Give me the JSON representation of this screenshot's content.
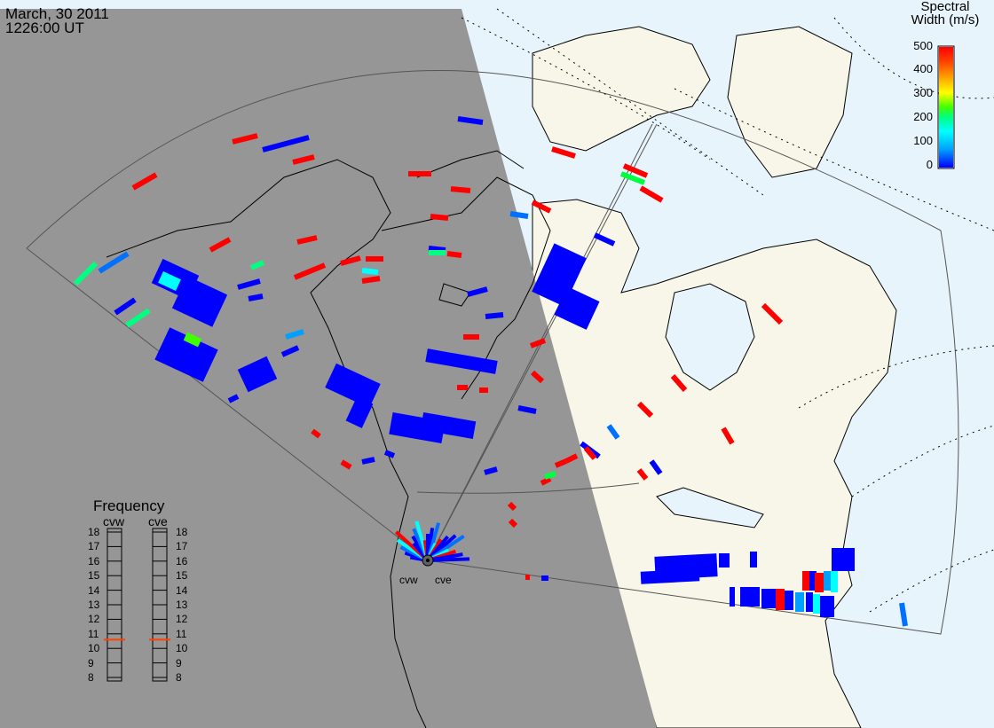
{
  "header": {
    "date": "March, 30 2011",
    "time": "1226:00 UT"
  },
  "colorbar": {
    "title_line1": "Spectral",
    "title_line2": "Width (m/s)",
    "ticks": [
      "500",
      "400",
      "300",
      "200",
      "100",
      "0"
    ],
    "range": [
      0,
      500
    ],
    "colors": [
      "#0000ff",
      "#00a0ff",
      "#00ffff",
      "#00ff80",
      "#40ff00",
      "#ffff00",
      "#ffa000",
      "#ff4000",
      "#ff0000"
    ]
  },
  "frequency_panel": {
    "title": "Frequency",
    "radars": [
      {
        "code": "cvw",
        "frequency_mhz": 10.6
      },
      {
        "code": "cve",
        "frequency_mhz": 10.6
      }
    ],
    "scale": [
      "18",
      "17",
      "16",
      "15",
      "14",
      "13",
      "12",
      "11",
      "10",
      "9",
      "8"
    ]
  },
  "radar_sites": [
    "cvw",
    "cve"
  ],
  "colors": {
    "night": "#969696",
    "ocean_day": "#e8f4fb",
    "land_day": "#f8f6e8",
    "indicator": "#ff4000"
  }
}
